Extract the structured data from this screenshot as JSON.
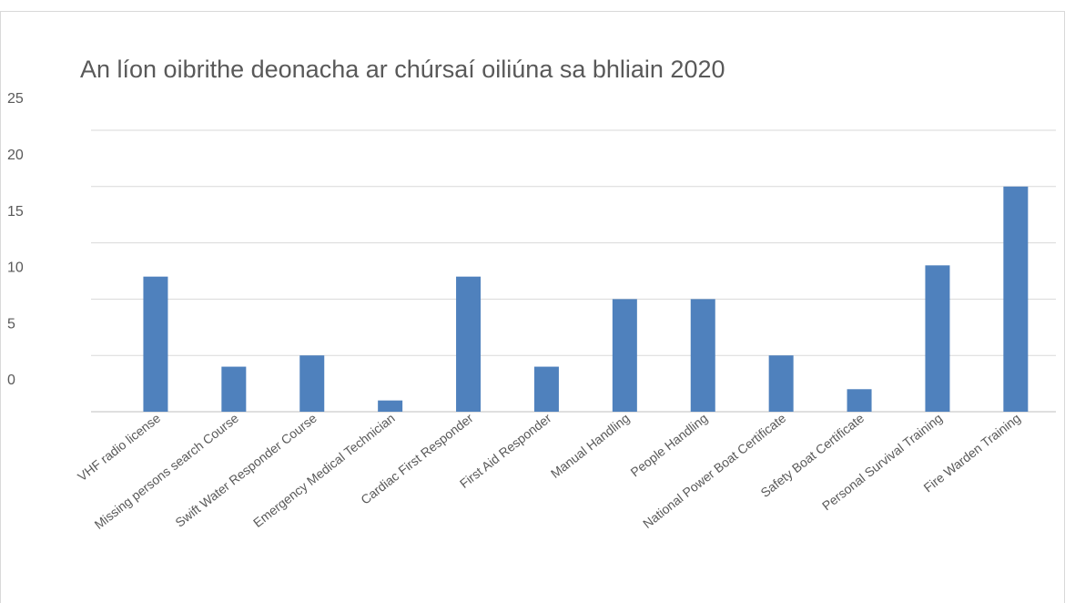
{
  "chart_data": {
    "type": "bar",
    "title": "An líon oibrithe deonacha ar chúrsaí oiliúna sa bhliain 2020",
    "categories": [
      "VHF radio license",
      "Missing persons search Course",
      "Swift Water Responder Course",
      "Emergency Medical Technician",
      "Cardiac First Responder",
      "First Aid Responder",
      "Manual Handling",
      "People Handling",
      "National Power Boat Certificate",
      "Safety Boat Certificate",
      "Personal Survival Training",
      "Fire Warden Training"
    ],
    "values": [
      12,
      4,
      5,
      1,
      12,
      4,
      10,
      10,
      5,
      2,
      13,
      20
    ],
    "color": "#4f81bd",
    "ylim": [
      0,
      25
    ],
    "yticks": [
      0,
      5,
      10,
      15,
      20,
      25
    ],
    "grid": true
  }
}
